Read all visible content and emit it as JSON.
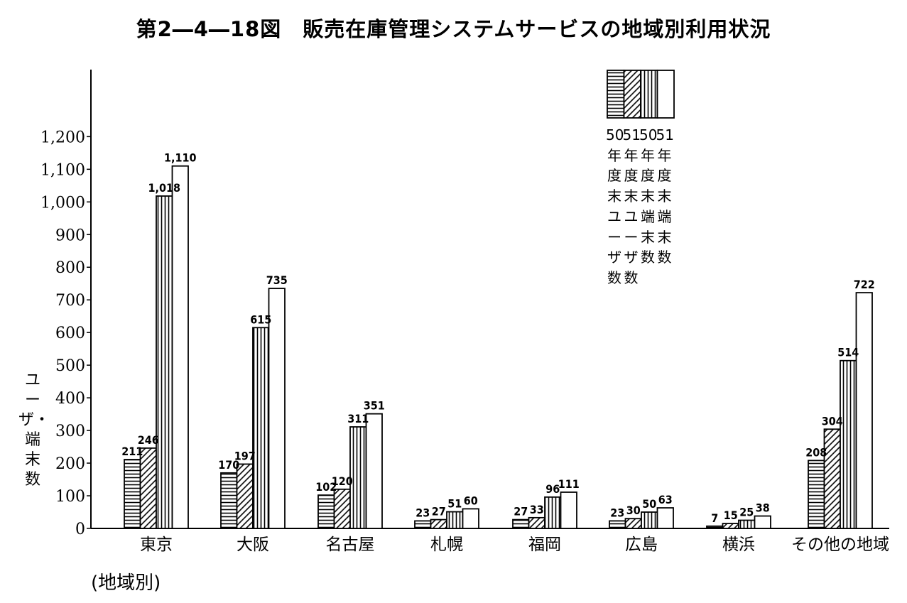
{
  "title": "第2―4―18図　販売在庫管理システムサービスの地域別利用状況",
  "chart_data": {
    "type": "bar",
    "title": "第2―4―18図　販売在庫管理システムサービスの地域別利用状況",
    "xlabel": "(地域別)",
    "ylabel": "ユーザ・端末数",
    "ylim": [
      0,
      1200
    ],
    "yticks": [
      "0",
      "100",
      "200",
      "300",
      "400",
      "500",
      "600",
      "700",
      "800",
      "900",
      "1,000",
      "1,100",
      "1,200"
    ],
    "categories": [
      "東京",
      "大阪",
      "名古屋",
      "札幌",
      "福岡",
      "広島",
      "横浜",
      "その他の地域"
    ],
    "series": [
      {
        "name": "50年度末ユーザ数",
        "pattern": "horizontal-stripes",
        "values": [
          211,
          170,
          102,
          23,
          27,
          23,
          7,
          208
        ]
      },
      {
        "name": "51年度末ユーザ数",
        "pattern": "diagonal-stripes",
        "values": [
          246,
          197,
          120,
          27,
          33,
          30,
          15,
          304
        ]
      },
      {
        "name": "50年度末端末数",
        "pattern": "vertical-stripes",
        "values": [
          1018,
          615,
          311,
          51,
          96,
          50,
          25,
          514
        ]
      },
      {
        "name": "51年度末端末数",
        "pattern": "blank",
        "values": [
          1110,
          735,
          351,
          60,
          111,
          63,
          38,
          722
        ]
      }
    ],
    "data_labels": [
      [
        "211",
        "170",
        "102",
        "23",
        "27",
        "23",
        "7",
        "208"
      ],
      [
        "246",
        "197",
        "120",
        "27",
        "33",
        "30",
        "15",
        "304"
      ],
      [
        "1,018",
        "615",
        "311",
        "51",
        "96",
        "50",
        "25",
        "514"
      ],
      [
        "1,110",
        "735",
        "351",
        "60",
        "111",
        "63",
        "38",
        "722"
      ]
    ],
    "legend_position": "top-right",
    "grid": false
  }
}
